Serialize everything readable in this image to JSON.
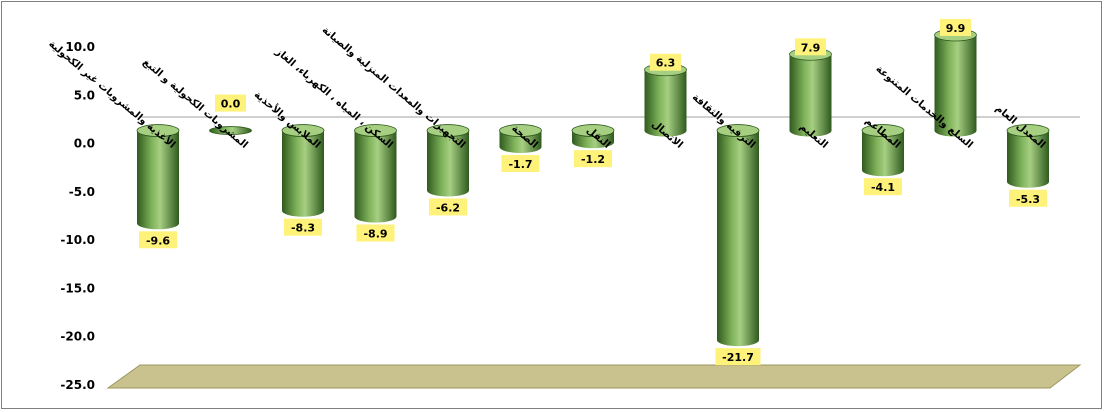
{
  "chart_data": {
    "type": "bar",
    "style": "3d-cylinder",
    "direction": "rtl",
    "title": "",
    "xlabel": "",
    "ylabel": "",
    "ylim": [
      -25,
      10
    ],
    "yticks": [
      "10.0",
      "5.0",
      "0.0",
      "-5.0",
      "-10.0",
      "-15.0",
      "-20.0",
      "-25.0"
    ],
    "grid": false,
    "legend": "none",
    "colors": {
      "bar": "#5a8a3c",
      "bar_dark": "#2f5a1e",
      "bar_light": "#a6cf82",
      "label_bg": "#fff27a",
      "floor": "#c9c28e",
      "axis": "#a0a0a0",
      "border": "#808080"
    },
    "categories": [
      "الأغذية والمشروبات غير الكحولية",
      "المشروبات الكحولية و التبغ",
      "الملابس والأحذية",
      "السكن ، المياه ، الكهرباء، الغاز",
      "التجهيزات والمعدات المنزلية والصيانة",
      "الصحة",
      "النقل",
      "الاتصال",
      "الترفيه والثقافة",
      "التعليم",
      "المطاعم",
      "السلع والخدمات المتنوعة",
      "المعدل العام"
    ],
    "values": [
      -9.6,
      0.0,
      -8.3,
      -8.9,
      -6.2,
      -1.7,
      -1.2,
      6.3,
      -21.7,
      7.9,
      -4.1,
      9.9,
      -5.3
    ],
    "data_labels": [
      "-9.6",
      "0.0",
      "-8.3",
      "-8.9",
      "-6.2",
      "-1.7",
      "-1.2",
      "6.3",
      "-21.7",
      "7.9",
      "-4.1",
      "9.9",
      "-5.3"
    ]
  }
}
